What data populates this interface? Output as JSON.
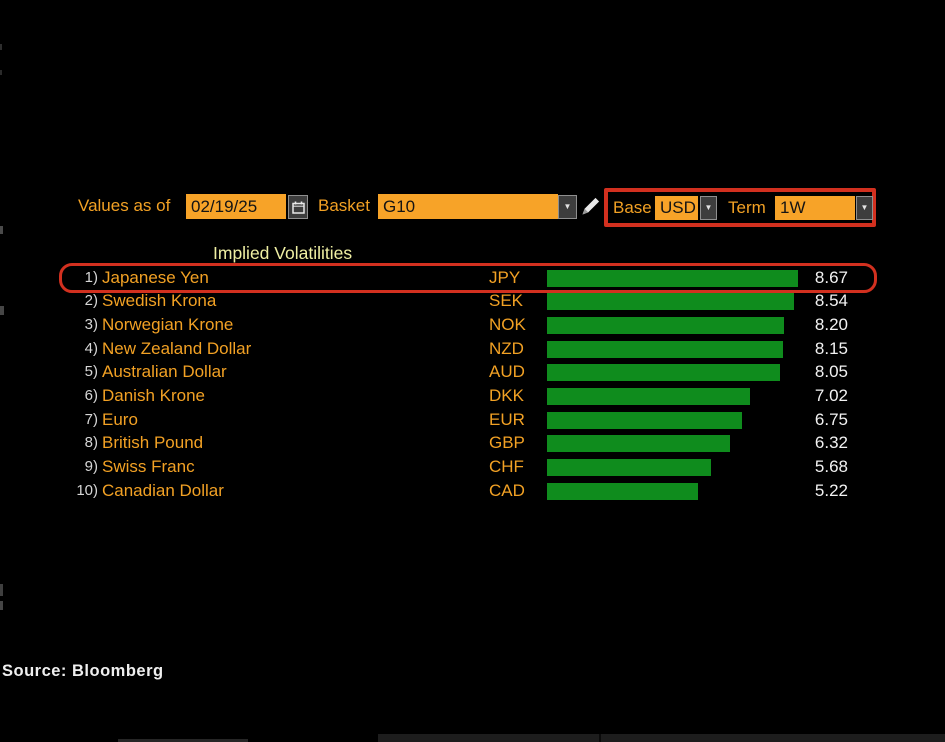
{
  "toolbar": {
    "values_as_of_label": "Values as of",
    "date_value": "02/19/25",
    "basket_label": "Basket",
    "basket_value": "G10",
    "base_label": "Base",
    "base_value": "USD",
    "term_label": "Term",
    "term_value": "1W",
    "dropdown_arrow": "▼"
  },
  "chart": {
    "title": "Implied Volatilities",
    "rows": [
      {
        "rank": "1)",
        "name": "Japanese Yen",
        "code": "JPY",
        "value": 8.67,
        "highlighted": true
      },
      {
        "rank": "2)",
        "name": "Swedish Krona",
        "code": "SEK",
        "value": 8.54,
        "highlighted": false
      },
      {
        "rank": "3)",
        "name": "Norwegian Krone",
        "code": "NOK",
        "value": 8.2,
        "highlighted": false
      },
      {
        "rank": "4)",
        "name": "New Zealand Dollar",
        "code": "NZD",
        "value": 8.15,
        "highlighted": false
      },
      {
        "rank": "5)",
        "name": "Australian Dollar",
        "code": "AUD",
        "value": 8.05,
        "highlighted": false
      },
      {
        "rank": "6)",
        "name": "Danish Krone",
        "code": "DKK",
        "value": 7.02,
        "highlighted": false
      },
      {
        "rank": "7)",
        "name": "Euro",
        "code": "EUR",
        "value": 6.75,
        "highlighted": false
      },
      {
        "rank": "8)",
        "name": "British Pound",
        "code": "GBP",
        "value": 6.32,
        "highlighted": false
      },
      {
        "rank": "9)",
        "name": "Swiss Franc",
        "code": "CHF",
        "value": 5.68,
        "highlighted": false
      },
      {
        "rank": "10)",
        "name": "Canadian Dollar",
        "code": "CAD",
        "value": 5.22,
        "highlighted": false
      }
    ]
  },
  "chart_data": {
    "type": "bar",
    "orientation": "horizontal",
    "title": "Implied Volatilities",
    "categories": [
      "Japanese Yen",
      "Swedish Krona",
      "Norwegian Krone",
      "New Zealand Dollar",
      "Australian Dollar",
      "Danish Krone",
      "Euro",
      "British Pound",
      "Swiss Franc",
      "Canadian Dollar"
    ],
    "codes": [
      "JPY",
      "SEK",
      "NOK",
      "NZD",
      "AUD",
      "DKK",
      "EUR",
      "GBP",
      "CHF",
      "CAD"
    ],
    "values": [
      8.67,
      8.54,
      8.2,
      8.15,
      8.05,
      7.02,
      6.75,
      6.32,
      5.68,
      5.22
    ],
    "xlim": [
      0,
      8.67
    ],
    "bar_color": "#0f8c1d",
    "legend": false,
    "grid": false,
    "annotations": [
      "red box around Base USD / Term 1W controls",
      "red box around row 1) Japanese Yen JPY 8.67"
    ]
  },
  "footer": {
    "source": "Source: Bloomberg"
  },
  "colors": {
    "background": "#000000",
    "label_orange": "#f2a124",
    "field_orange": "#f7a328",
    "bar_green": "#0f8c1d",
    "title_yellow": "#efefa3",
    "value_white": "#f2f2f2",
    "annotation_red": "#d2301f"
  }
}
